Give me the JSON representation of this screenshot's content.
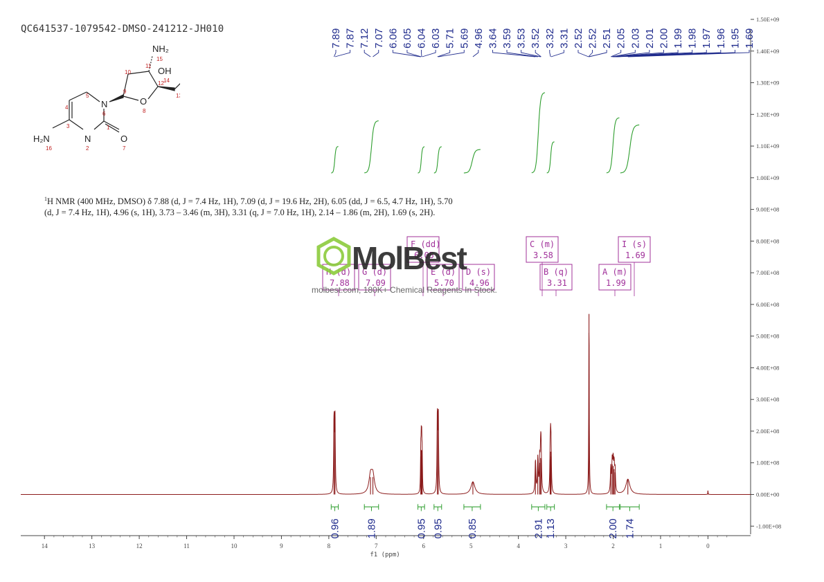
{
  "sample_id": "QC641537-1079542-DMSO-241212-JH010",
  "nmr_description": {
    "nucleus_prefix": "1",
    "text": "H NMR (400 MHz, DMSO) δ 7.88 (d, J = 7.4 Hz, 1H), 7.09 (d, J = 19.6 Hz, 2H), 6.05 (dd, J = 6.5, 4.7 Hz, 1H), 5.70 (d, J = 7.4 Hz, 1H), 4.96 (s, 1H), 3.73 – 3.46 (m, 3H), 3.31 (q, J = 7.0 Hz, 1H), 2.14 – 1.86 (m, 2H), 1.69 (s, 2H)."
  },
  "watermark": {
    "name": "MolBest",
    "tagline": "molbest.com, 180K+ Chemical Reagents In Stock.",
    "color": "#8CCB3C"
  },
  "molecule": {
    "atoms": [
      {
        "label": "NH₂",
        "num": "15"
      },
      {
        "label": "OH",
        "num": "14"
      },
      {
        "label": "N",
        "num": "6"
      },
      {
        "label": "O",
        "num": "8"
      },
      {
        "label": "H₂N",
        "num": "16"
      },
      {
        "label": "N",
        "num": "2"
      },
      {
        "label": "O",
        "num": "7"
      }
    ],
    "numbers": [
      "10",
      "11",
      "9",
      "12",
      "13",
      "5",
      "4",
      "3",
      "1"
    ]
  },
  "chart_data": {
    "type": "line",
    "title": "",
    "xlabel": "f1 (ppm)",
    "ylabel": "",
    "xlim": [
      14.5,
      -0.9
    ],
    "ylim": [
      -130000000,
      1500000000
    ],
    "x_ticks": [
      "14",
      "13",
      "12",
      "11",
      "10",
      "9",
      "8",
      "7",
      "6",
      "5",
      "4",
      "3",
      "2",
      "1",
      "0"
    ],
    "y_ticks": [
      "1.50E+09",
      "1.40E+09",
      "1.30E+09",
      "1.20E+09",
      "1.10E+09",
      "1.00E+09",
      "9.00E+08",
      "8.00E+08",
      "7.00E+08",
      "6.00E+08",
      "5.00E+08",
      "4.00E+08",
      "3.00E+08",
      "2.00E+08",
      "1.00E+08",
      "0.00E+00",
      "-1.00E+08"
    ],
    "peak_labels": [
      "7.89",
      "7.87",
      "7.12",
      "7.07",
      "6.06",
      "6.05",
      "6.04",
      "6.03",
      "5.71",
      "5.69",
      "4.96",
      "3.64",
      "3.59",
      "3.53",
      "3.52",
      "3.32",
      "3.31",
      "2.52",
      "2.52",
      "2.51",
      "2.05",
      "2.03",
      "2.01",
      "2.00",
      "1.99",
      "1.98",
      "1.97",
      "1.96",
      "1.95",
      "1.69"
    ],
    "peaks": [
      {
        "ppm": 7.89,
        "height": 240000000,
        "width": 0.008
      },
      {
        "ppm": 7.87,
        "height": 245000000,
        "width": 0.008
      },
      {
        "ppm": 7.12,
        "height": 55000000,
        "width": 0.04
      },
      {
        "ppm": 7.07,
        "height": 55000000,
        "width": 0.04
      },
      {
        "ppm": 6.06,
        "height": 120000000,
        "width": 0.006
      },
      {
        "ppm": 6.05,
        "height": 140000000,
        "width": 0.006
      },
      {
        "ppm": 6.04,
        "height": 140000000,
        "width": 0.006
      },
      {
        "ppm": 6.03,
        "height": 110000000,
        "width": 0.006
      },
      {
        "ppm": 5.71,
        "height": 250000000,
        "width": 0.008
      },
      {
        "ppm": 5.69,
        "height": 250000000,
        "width": 0.008
      },
      {
        "ppm": 4.96,
        "height": 40000000,
        "width": 0.05
      },
      {
        "ppm": 3.64,
        "height": 105000000,
        "width": 0.01
      },
      {
        "ppm": 3.59,
        "height": 110000000,
        "width": 0.01
      },
      {
        "ppm": 3.55,
        "height": 100000000,
        "width": 0.01
      },
      {
        "ppm": 3.53,
        "height": 115000000,
        "width": 0.01
      },
      {
        "ppm": 3.52,
        "height": 110000000,
        "width": 0.01
      },
      {
        "ppm": 3.33,
        "height": 110000000,
        "width": 0.008
      },
      {
        "ppm": 3.32,
        "height": 135000000,
        "width": 0.008
      },
      {
        "ppm": 3.31,
        "height": 120000000,
        "width": 0.008
      },
      {
        "ppm": 2.51,
        "height": 570000000,
        "width": 0.006
      },
      {
        "ppm": 2.05,
        "height": 80000000,
        "width": 0.01
      },
      {
        "ppm": 2.02,
        "height": 95000000,
        "width": 0.01
      },
      {
        "ppm": 2.0,
        "height": 90000000,
        "width": 0.01
      },
      {
        "ppm": 1.98,
        "height": 80000000,
        "width": 0.01
      },
      {
        "ppm": 1.96,
        "height": 70000000,
        "width": 0.01
      },
      {
        "ppm": 1.69,
        "height": 48000000,
        "width": 0.05
      },
      {
        "ppm": 0.0,
        "height": 12000000,
        "width": 0.004
      }
    ],
    "multiplets": [
      {
        "letter": "A",
        "type": "m",
        "shift": "1.99"
      },
      {
        "letter": "B",
        "type": "q",
        "shift": "3.31"
      },
      {
        "letter": "C",
        "type": "m",
        "shift": "3.58"
      },
      {
        "letter": "D",
        "type": "s",
        "shift": "4.96"
      },
      {
        "letter": "E",
        "type": "d",
        "shift": "5.70"
      },
      {
        "letter": "F",
        "type": "dd",
        "shift": "6.05"
      },
      {
        "letter": "G",
        "type": "d",
        "shift": "7.09"
      },
      {
        "letter": "H",
        "type": "d",
        "shift": "7.88"
      },
      {
        "letter": "I",
        "type": "s",
        "shift": "1.69"
      }
    ],
    "integrals": [
      {
        "from": 7.95,
        "to": 7.8,
        "value": "0.96"
      },
      {
        "from": 7.25,
        "to": 6.95,
        "value": "1.89"
      },
      {
        "from": 6.12,
        "to": 5.98,
        "value": "0.95"
      },
      {
        "from": 5.78,
        "to": 5.62,
        "value": "0.95"
      },
      {
        "from": 5.15,
        "to": 4.8,
        "value": "0.85"
      },
      {
        "from": 3.72,
        "to": 3.44,
        "value": "2.91"
      },
      {
        "from": 3.4,
        "to": 3.24,
        "value": "1.13"
      },
      {
        "from": 2.14,
        "to": 1.87,
        "value": "2.00"
      },
      {
        "from": 1.85,
        "to": 1.45,
        "value": "1.74"
      }
    ],
    "colors": {
      "spectrum": "#8B1A1A",
      "integral": "#2E9E2E",
      "peak_label": "#1E2A8C",
      "multiplet": "#A0309A",
      "axis": "#444444"
    }
  }
}
